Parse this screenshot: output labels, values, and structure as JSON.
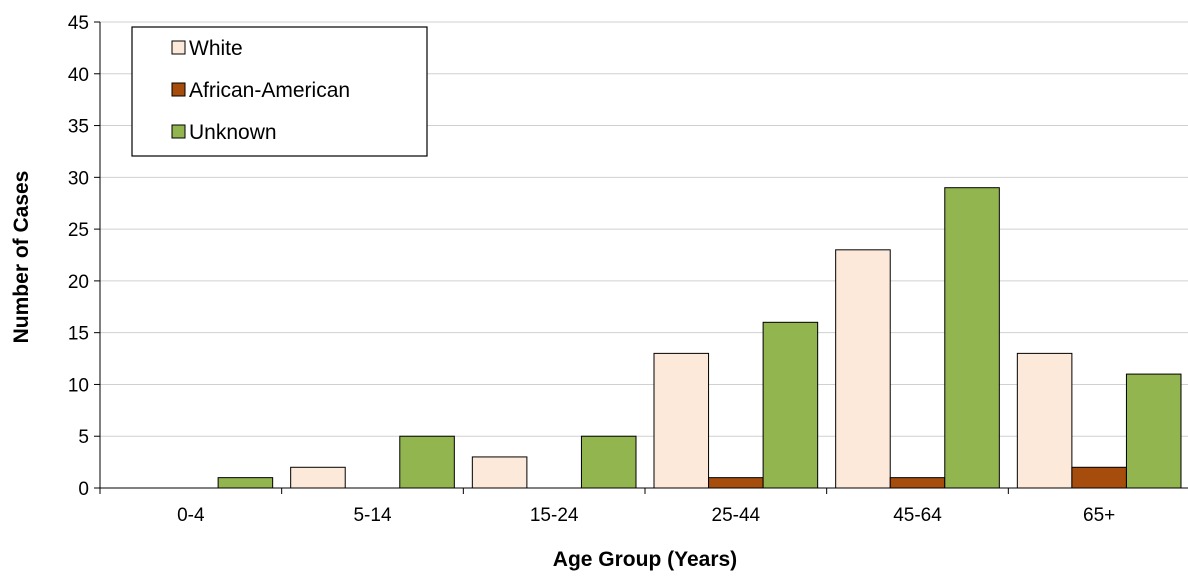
{
  "chart_data": {
    "type": "bar",
    "title": "",
    "xlabel": "Age Group (Years)",
    "ylabel": "Number of Cases",
    "categories": [
      "0-4",
      "5-14",
      "15-24",
      "25-44",
      "45-64",
      "65+"
    ],
    "series": [
      {
        "name": "White",
        "color": "#FDE9D9",
        "values": [
          0,
          2,
          3,
          13,
          23,
          13
        ]
      },
      {
        "name": "African-American",
        "color": "#A64D0D",
        "values": [
          0,
          0,
          0,
          1,
          1,
          2
        ]
      },
      {
        "name": "Unknown",
        "color": "#92B550",
        "values": [
          1,
          5,
          5,
          16,
          29,
          11
        ]
      }
    ],
    "ylim": [
      0,
      45
    ],
    "yticks": [
      0,
      5,
      10,
      15,
      20,
      25,
      30,
      35,
      40,
      45
    ],
    "grid": true,
    "legend": "top-left"
  }
}
